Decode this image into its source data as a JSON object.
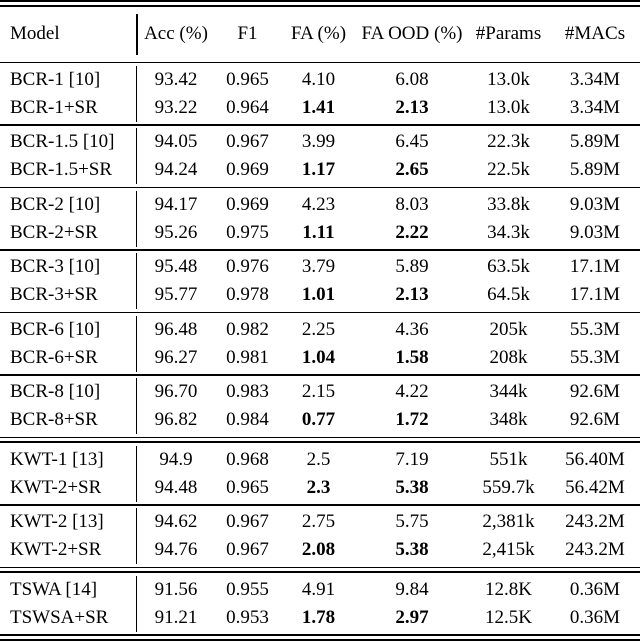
{
  "table": {
    "columns": [
      {
        "key": "model",
        "label": "Model"
      },
      {
        "key": "acc",
        "label": "Acc (%)"
      },
      {
        "key": "f1",
        "label": "F1"
      },
      {
        "key": "fa",
        "label": "FA (%)"
      },
      {
        "key": "fa_ood",
        "label": "FA OOD (%)"
      },
      {
        "key": "params",
        "label": "#Params"
      },
      {
        "key": "macs",
        "label": "#MACs"
      }
    ],
    "text_color": "#000000",
    "background_color": "#ffffff",
    "groups": [
      {
        "separator_after": "single",
        "rows": [
          {
            "model": "BCR-1 [10]",
            "acc": "93.42",
            "f1": "0.965",
            "fa": "4.10",
            "fa_ood": "6.08",
            "params": "13.0k",
            "macs": "3.34M"
          },
          {
            "model": "BCR-1+SR",
            "acc": "93.22",
            "f1": "0.964",
            "fa": "1.41",
            "fa_ood": "2.13",
            "params": "13.0k",
            "macs": "3.34M"
          }
        ]
      },
      {
        "separator_after": "single",
        "rows": [
          {
            "model": "BCR-1.5 [10]",
            "acc": "94.05",
            "f1": "0.967",
            "fa": "3.99",
            "fa_ood": "6.45",
            "params": "22.3k",
            "macs": "5.89M"
          },
          {
            "model": "BCR-1.5+SR",
            "acc": "94.24",
            "f1": "0.969",
            "fa": "1.17",
            "fa_ood": "2.65",
            "params": "22.5k",
            "macs": "5.89M"
          }
        ]
      },
      {
        "separator_after": "single",
        "rows": [
          {
            "model": "BCR-2 [10]",
            "acc": "94.17",
            "f1": "0.969",
            "fa": "4.23",
            "fa_ood": "8.03",
            "params": "33.8k",
            "macs": "9.03M"
          },
          {
            "model": "BCR-2+SR",
            "acc": "95.26",
            "f1": "0.975",
            "fa": "1.11",
            "fa_ood": "2.22",
            "params": "34.3k",
            "macs": "9.03M"
          }
        ]
      },
      {
        "separator_after": "single",
        "rows": [
          {
            "model": "BCR-3 [10]",
            "acc": "95.48",
            "f1": "0.976",
            "fa": "3.79",
            "fa_ood": "5.89",
            "params": "63.5k",
            "macs": "17.1M"
          },
          {
            "model": "BCR-3+SR",
            "acc": "95.77",
            "f1": "0.978",
            "fa": "1.01",
            "fa_ood": "2.13",
            "params": "64.5k",
            "macs": "17.1M"
          }
        ]
      },
      {
        "separator_after": "single",
        "rows": [
          {
            "model": "BCR-6 [10]",
            "acc": "96.48",
            "f1": "0.982",
            "fa": "2.25",
            "fa_ood": "4.36",
            "params": "205k",
            "macs": "55.3M"
          },
          {
            "model": "BCR-6+SR",
            "acc": "96.27",
            "f1": "0.981",
            "fa": "1.04",
            "fa_ood": "1.58",
            "params": "208k",
            "macs": "55.3M"
          }
        ]
      },
      {
        "separator_after": "double",
        "rows": [
          {
            "model": "BCR-8 [10]",
            "acc": "96.70",
            "f1": "0.983",
            "fa": "2.15",
            "fa_ood": "4.22",
            "params": "344k",
            "macs": "92.6M"
          },
          {
            "model": "BCR-8+SR",
            "acc": "96.82",
            "f1": "0.984",
            "fa": "0.77",
            "fa_ood": "1.72",
            "params": "348k",
            "macs": "92.6M"
          }
        ]
      },
      {
        "separator_after": "single",
        "rows": [
          {
            "model": "KWT-1 [13]",
            "acc": "94.9",
            "f1": "0.968",
            "fa": "2.5",
            "fa_ood": "7.19",
            "params": "551k",
            "macs": "56.40M"
          },
          {
            "model": "KWT-2+SR",
            "acc": "94.48",
            "f1": "0.965",
            "fa": "2.3",
            "fa_ood": "5.38",
            "params": "559.7k",
            "macs": "56.42M"
          }
        ]
      },
      {
        "separator_after": "double",
        "rows": [
          {
            "model": "KWT-2 [13]",
            "acc": "94.62",
            "f1": "0.967",
            "fa": "2.75",
            "fa_ood": "5.75",
            "params": "2,381k",
            "macs": "243.2M"
          },
          {
            "model": "KWT-2+SR",
            "acc": "94.76",
            "f1": "0.967",
            "fa": "2.08",
            "fa_ood": "5.38",
            "params": "2,415k",
            "macs": "243.2M"
          }
        ]
      },
      {
        "separator_after": "bottom-double",
        "rows": [
          {
            "model": "TSWA [14]",
            "acc": "91.56",
            "f1": "0.955",
            "fa": "4.91",
            "fa_ood": "9.84",
            "params": "12.8K",
            "macs": "0.36M"
          },
          {
            "model": "TSWSA+SR",
            "acc": "91.21",
            "f1": "0.953",
            "fa": "1.78",
            "fa_ood": "2.97",
            "params": "12.5K",
            "macs": "0.36M"
          }
        ]
      }
    ]
  }
}
